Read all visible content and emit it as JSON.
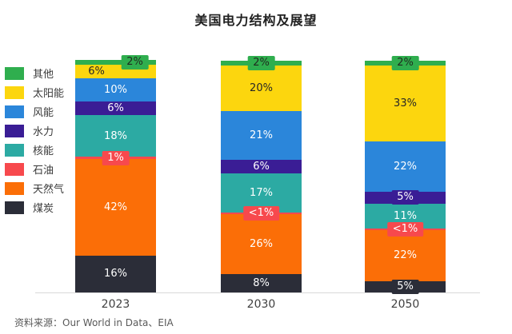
{
  "title": "美国电力结构及展望",
  "source": "资料来源：Our World in Data、EIA",
  "legend": [
    {
      "label": "其他",
      "color": "#2fae4e"
    },
    {
      "label": "太阳能",
      "color": "#fcd60e"
    },
    {
      "label": "风能",
      "color": "#2b86da"
    },
    {
      "label": "水力",
      "color": "#3a1d95"
    },
    {
      "label": "核能",
      "color": "#2caaa3"
    },
    {
      "label": "石油",
      "color": "#f7494d"
    },
    {
      "label": "天然气",
      "color": "#fb6e07"
    },
    {
      "label": "煤炭",
      "color": "#2b2d38"
    }
  ],
  "chart_data": {
    "type": "bar",
    "stacked": true,
    "title": "美国电力结构及展望",
    "categories": [
      "2023",
      "2030",
      "2050"
    ],
    "series": [
      {
        "name": "煤炭",
        "color": "#2b2d38",
        "text_color": "#ffffff",
        "values": [
          16,
          8,
          5
        ],
        "labels": [
          "16%",
          "8%",
          "5%"
        ]
      },
      {
        "name": "天然气",
        "color": "#fb6e07",
        "text_color": "#ffffff",
        "values": [
          42,
          26,
          22
        ],
        "labels": [
          "42%",
          "26%",
          "22%"
        ]
      },
      {
        "name": "石油",
        "color": "#f7494d",
        "text_color": "#ffffff",
        "values": [
          1,
          0.6,
          0.6
        ],
        "labels": [
          "1%",
          "<1%",
          "<1%"
        ]
      },
      {
        "name": "核能",
        "color": "#2caaa3",
        "text_color": "#ffffff",
        "values": [
          18,
          17,
          11
        ],
        "labels": [
          "18%",
          "17%",
          "11%"
        ]
      },
      {
        "name": "水力",
        "color": "#3a1d95",
        "text_color": "#ffffff",
        "values": [
          6,
          6,
          5
        ],
        "labels": [
          "6%",
          "6%",
          "5%"
        ]
      },
      {
        "name": "风能",
        "color": "#2b86da",
        "text_color": "#ffffff",
        "values": [
          10,
          21,
          22
        ],
        "labels": [
          "10%",
          "21%",
          "22%"
        ]
      },
      {
        "name": "太阳能",
        "color": "#fcd60e",
        "text_color": "#262626",
        "values": [
          6,
          20,
          33
        ],
        "labels": [
          "6%",
          "20%",
          "33%"
        ],
        "label_dx": [
          -24,
          0,
          0
        ]
      },
      {
        "name": "其他",
        "color": "#2fae4e",
        "text_color": "#1f2a1f",
        "values": [
          2,
          2,
          2
        ],
        "labels": [
          "2%",
          "2%",
          "2%"
        ],
        "label_dx": [
          24,
          0,
          0
        ]
      }
    ],
    "unit": "%",
    "ylim": [
      0,
      101
    ],
    "grid": false,
    "legend_position": "left",
    "x_axis_labels": [
      "2023",
      "2030",
      "2050"
    ]
  }
}
